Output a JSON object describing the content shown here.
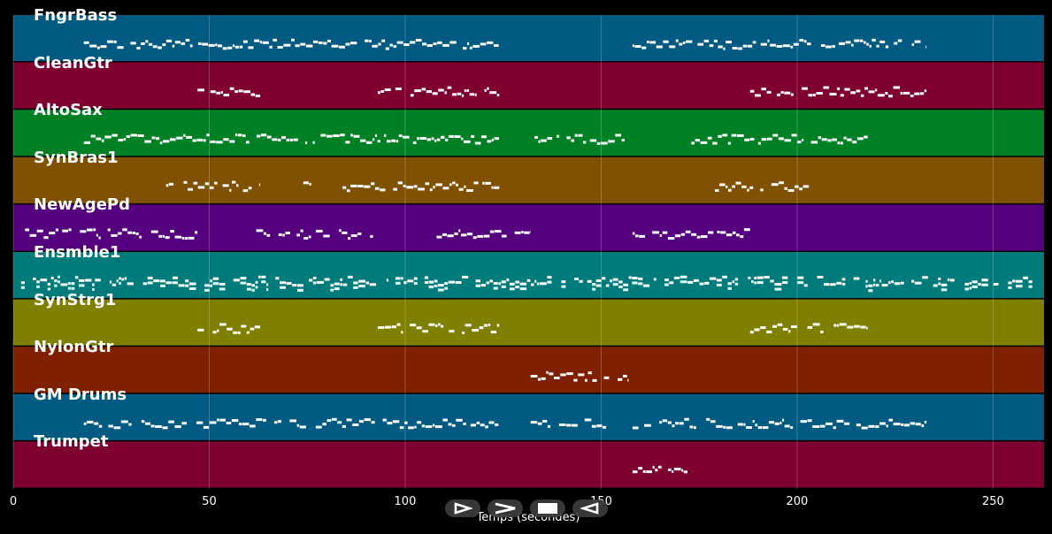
{
  "tracks": [
    {
      "name": "FngrBass",
      "color": "#005a82"
    },
    {
      "name": "CleanGtr",
      "color": "#7f0030"
    },
    {
      "name": "AltoSax",
      "color": "#008025"
    },
    {
      "name": "SynBras1",
      "color": "#7f5100"
    },
    {
      "name": "NewAgePd",
      "color": "#55007f"
    },
    {
      "name": "Ensmble1",
      "color": "#007b7b"
    },
    {
      "name": "SynStrg1",
      "color": "#7f7f00"
    },
    {
      "name": "NylonGtr",
      "color": "#7f2100"
    },
    {
      "name": "GM Drums",
      "color": "#005a82"
    },
    {
      "name": "Trumpet",
      "color": "#7f0030"
    }
  ],
  "chart_data": {
    "type": "piano-roll",
    "xlabel": "Temps (secondes)",
    "xlim": [
      0,
      263
    ],
    "xticks": [
      "0",
      "50",
      "100",
      "150",
      "200",
      "250"
    ],
    "grid": true,
    "segments": {
      "FngrBass": [
        [
          18,
          124
        ],
        [
          158,
          233
        ]
      ],
      "CleanGtr": [
        [
          47,
          63
        ],
        [
          93,
          124
        ],
        [
          188,
          233
        ]
      ],
      "AltoSax": [
        [
          18,
          124
        ],
        [
          133,
          156
        ],
        [
          173,
          218
        ]
      ],
      "SynBras1": [
        [
          39,
          63
        ],
        [
          74,
          76
        ],
        [
          84,
          124
        ],
        [
          179,
          203
        ]
      ],
      "NewAgePd": [
        [
          3,
          47
        ],
        [
          62,
          93
        ],
        [
          108,
          132
        ],
        [
          158,
          188
        ]
      ],
      "Ensmble1": [
        [
          2,
          260
        ]
      ],
      "SynStrg1": [
        [
          47,
          63
        ],
        [
          93,
          124
        ],
        [
          188,
          218
        ]
      ],
      "NylonGtr": [
        [
          132,
          157
        ]
      ],
      "GM Drums": [
        [
          18,
          124
        ],
        [
          132,
          152
        ],
        [
          158,
          233
        ]
      ],
      "Trumpet": [
        [
          158,
          172
        ]
      ]
    }
  },
  "controls": {
    "play_icon": "play-icon",
    "forward_icon": "forward-icon",
    "stop_icon": "stop-icon",
    "back_icon": "back-icon"
  }
}
